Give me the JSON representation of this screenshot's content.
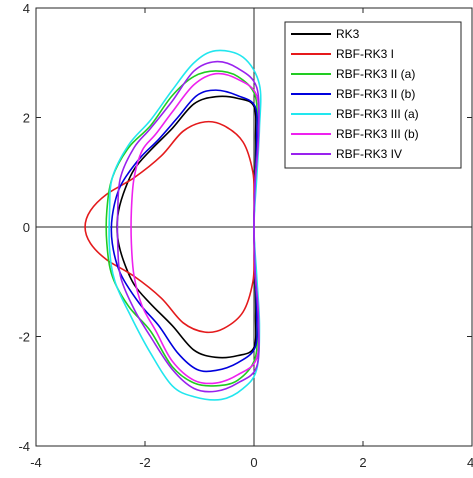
{
  "chart_data": {
    "type": "line",
    "title": "",
    "xlabel": "",
    "ylabel": "",
    "xlim": [
      -4,
      4
    ],
    "ylim": [
      -4,
      4
    ],
    "xticks": [
      -4,
      -2,
      0,
      2,
      4
    ],
    "yticks": [
      -4,
      -2,
      0,
      2,
      4
    ],
    "grid": false,
    "box": true,
    "zero_lines": true,
    "legend_position": "top-right",
    "series": [
      {
        "name": "RK3",
        "color": "#000000",
        "points": [
          [
            0,
            0
          ],
          [
            0.02,
            0.8
          ],
          [
            0.03,
            1.6
          ],
          [
            0.0,
            2.2
          ],
          [
            -0.3,
            2.35
          ],
          [
            -0.7,
            2.38
          ],
          [
            -1.1,
            2.25
          ],
          [
            -1.5,
            1.8
          ],
          [
            -1.9,
            1.4
          ],
          [
            -2.2,
            1.05
          ],
          [
            -2.4,
            0.6
          ],
          [
            -2.5,
            0.2
          ],
          [
            -2.5,
            -0.2
          ],
          [
            -2.4,
            -0.6
          ],
          [
            -2.2,
            -1.05
          ],
          [
            -1.9,
            -1.4
          ],
          [
            -1.5,
            -1.8
          ],
          [
            -1.1,
            -2.25
          ],
          [
            -0.7,
            -2.38
          ],
          [
            -0.3,
            -2.35
          ],
          [
            0.0,
            -2.2
          ],
          [
            0.03,
            -1.6
          ],
          [
            0.02,
            -0.8
          ],
          [
            0,
            0
          ]
        ]
      },
      {
        "name": "RBF-RK3 I",
        "color": "#e41a1c",
        "points": [
          [
            0,
            0
          ],
          [
            0.0,
            0.5
          ],
          [
            -0.02,
            1.0
          ],
          [
            -0.2,
            1.55
          ],
          [
            -0.55,
            1.85
          ],
          [
            -0.9,
            1.92
          ],
          [
            -1.3,
            1.75
          ],
          [
            -1.7,
            1.3
          ],
          [
            -2.2,
            0.9
          ],
          [
            -2.7,
            0.6
          ],
          [
            -3.0,
            0.3
          ],
          [
            -3.1,
            0.0
          ],
          [
            -3.0,
            -0.3
          ],
          [
            -2.7,
            -0.6
          ],
          [
            -2.2,
            -0.9
          ],
          [
            -1.7,
            -1.3
          ],
          [
            -1.3,
            -1.75
          ],
          [
            -0.9,
            -1.92
          ],
          [
            -0.55,
            -1.85
          ],
          [
            -0.2,
            -1.55
          ],
          [
            -0.02,
            -1.0
          ],
          [
            0.0,
            -0.5
          ],
          [
            0,
            0
          ]
        ]
      },
      {
        "name": "RBF-RK3 II (a)",
        "color": "#22cc22",
        "points": [
          [
            0,
            0
          ],
          [
            0.02,
            0.8
          ],
          [
            0.05,
            1.7
          ],
          [
            0.02,
            2.4
          ],
          [
            -0.3,
            2.75
          ],
          [
            -0.7,
            2.85
          ],
          [
            -1.1,
            2.75
          ],
          [
            -1.5,
            2.4
          ],
          [
            -1.9,
            1.85
          ],
          [
            -2.3,
            1.45
          ],
          [
            -2.6,
            0.9
          ],
          [
            -2.7,
            0.3
          ],
          [
            -2.7,
            -0.3
          ],
          [
            -2.6,
            -0.9
          ],
          [
            -2.3,
            -1.45
          ],
          [
            -1.9,
            -1.9
          ],
          [
            -1.5,
            -2.55
          ],
          [
            -1.1,
            -2.85
          ],
          [
            -0.7,
            -2.9
          ],
          [
            -0.3,
            -2.8
          ],
          [
            0.02,
            -2.4
          ],
          [
            0.05,
            -1.7
          ],
          [
            0.02,
            -0.8
          ],
          [
            0,
            0
          ]
        ]
      },
      {
        "name": "RBF-RK3 II (b)",
        "color": "#0000dd",
        "points": [
          [
            0,
            0
          ],
          [
            0.02,
            0.8
          ],
          [
            0.05,
            1.6
          ],
          [
            0.02,
            2.2
          ],
          [
            -0.3,
            2.4
          ],
          [
            -0.7,
            2.5
          ],
          [
            -1.05,
            2.4
          ],
          [
            -1.4,
            2.0
          ],
          [
            -1.75,
            1.6
          ],
          [
            -2.1,
            1.25
          ],
          [
            -2.45,
            0.75
          ],
          [
            -2.6,
            0.2
          ],
          [
            -2.6,
            -0.3
          ],
          [
            -2.45,
            -0.85
          ],
          [
            -2.1,
            -1.4
          ],
          [
            -1.75,
            -1.8
          ],
          [
            -1.4,
            -2.3
          ],
          [
            -1.05,
            -2.6
          ],
          [
            -0.7,
            -2.62
          ],
          [
            -0.3,
            -2.48
          ],
          [
            0.02,
            -2.2
          ],
          [
            0.05,
            -1.6
          ],
          [
            0.02,
            -0.8
          ],
          [
            0,
            0
          ]
        ]
      },
      {
        "name": "RBF-RK3 III (a)",
        "color": "#22e6ee",
        "points": [
          [
            0,
            0
          ],
          [
            0.05,
            0.9
          ],
          [
            0.1,
            1.8
          ],
          [
            0.1,
            2.6
          ],
          [
            -0.2,
            3.1
          ],
          [
            -0.7,
            3.22
          ],
          [
            -1.1,
            3.0
          ],
          [
            -1.5,
            2.5
          ],
          [
            -1.9,
            1.95
          ],
          [
            -2.3,
            1.5
          ],
          [
            -2.6,
            0.9
          ],
          [
            -2.65,
            0.3
          ],
          [
            -2.65,
            -0.4
          ],
          [
            -2.55,
            -1.0
          ],
          [
            -2.25,
            -1.65
          ],
          [
            -1.9,
            -2.3
          ],
          [
            -1.5,
            -2.9
          ],
          [
            -1.1,
            -3.1
          ],
          [
            -0.6,
            -3.15
          ],
          [
            -0.2,
            -2.95
          ],
          [
            0.05,
            -2.6
          ],
          [
            0.1,
            -1.8
          ],
          [
            0.05,
            -0.9
          ],
          [
            0,
            0
          ]
        ]
      },
      {
        "name": "RBF-RK3 III (b)",
        "color": "#ee22ee",
        "points": [
          [
            0,
            0
          ],
          [
            0.02,
            0.8
          ],
          [
            0.08,
            1.6
          ],
          [
            0.05,
            2.4
          ],
          [
            -0.3,
            2.7
          ],
          [
            -0.7,
            2.8
          ],
          [
            -1.1,
            2.6
          ],
          [
            -1.5,
            2.1
          ],
          [
            -1.8,
            1.7
          ],
          [
            -2.05,
            1.4
          ],
          [
            -2.2,
            0.9
          ],
          [
            -2.25,
            0.3
          ],
          [
            -2.25,
            -0.3
          ],
          [
            -2.2,
            -0.9
          ],
          [
            -2.05,
            -1.45
          ],
          [
            -1.8,
            -1.9
          ],
          [
            -1.5,
            -2.45
          ],
          [
            -1.1,
            -2.8
          ],
          [
            -0.7,
            -2.85
          ],
          [
            -0.3,
            -2.7
          ],
          [
            0.05,
            -2.4
          ],
          [
            0.08,
            -1.6
          ],
          [
            0.02,
            -0.8
          ],
          [
            0,
            0
          ]
        ]
      },
      {
        "name": "RBF-RK3 IV",
        "color": "#9922ee",
        "points": [
          [
            0,
            0
          ],
          [
            0.02,
            0.8
          ],
          [
            0.08,
            1.7
          ],
          [
            0.05,
            2.55
          ],
          [
            -0.3,
            2.9
          ],
          [
            -0.7,
            3.02
          ],
          [
            -1.1,
            2.85
          ],
          [
            -1.5,
            2.3
          ],
          [
            -1.9,
            1.8
          ],
          [
            -2.2,
            1.45
          ],
          [
            -2.45,
            0.9
          ],
          [
            -2.5,
            0.3
          ],
          [
            -2.5,
            -0.3
          ],
          [
            -2.45,
            -0.9
          ],
          [
            -2.2,
            -1.5
          ],
          [
            -1.9,
            -2.0
          ],
          [
            -1.5,
            -2.6
          ],
          [
            -1.1,
            -2.95
          ],
          [
            -0.7,
            -3.0
          ],
          [
            -0.3,
            -2.85
          ],
          [
            0.05,
            -2.55
          ],
          [
            0.08,
            -1.7
          ],
          [
            0.02,
            -0.8
          ],
          [
            0,
            0
          ]
        ]
      }
    ]
  }
}
